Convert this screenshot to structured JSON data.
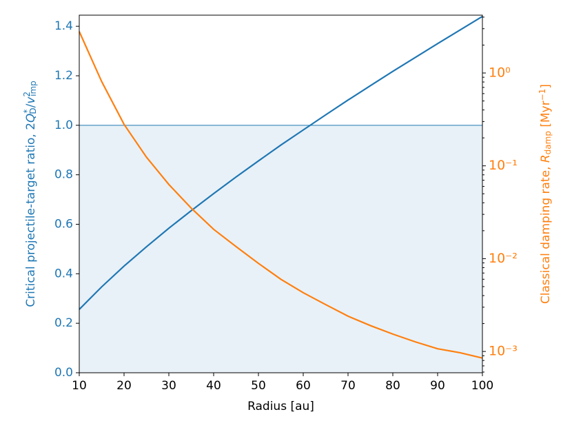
{
  "chart_data": {
    "type": "line",
    "xlabel": "Radius [au]",
    "ylabel_parts": [
      "Critical projectile-target ratio, 2",
      "Q",
      "*",
      "D",
      "/",
      "v",
      "2",
      "imp"
    ],
    "y2label_parts": [
      "Classical damping rate, ",
      "R",
      "damp",
      " [Myr",
      "−1",
      "]"
    ],
    "x": [
      10,
      15,
      20,
      25,
      30,
      35,
      40,
      45,
      50,
      55,
      60,
      65,
      70,
      75,
      80,
      85,
      90,
      95,
      100
    ],
    "series": [
      {
        "color": "#1f77b4",
        "values": [
          0.256,
          0.347,
          0.431,
          0.509,
          0.584,
          0.655,
          0.724,
          0.791,
          0.856,
          0.92,
          0.981,
          1.042,
          1.102,
          1.16,
          1.218,
          1.274,
          1.33,
          1.385,
          1.44
        ]
      },
      {
        "color": "#ff7f0e",
        "axis": "y2",
        "values": [
          2.8,
          0.81,
          0.28,
          0.124,
          0.063,
          0.035,
          0.0207,
          0.0135,
          0.0089,
          0.006,
          0.0043,
          0.0032,
          0.0024,
          0.0019,
          0.00154,
          0.00127,
          0.00107,
          0.00097,
          0.00085
        ]
      }
    ],
    "threshold": 1.0,
    "threshold_color": "#1f77b4",
    "xlim": [
      10,
      100
    ],
    "xticks": [
      10,
      20,
      30,
      40,
      50,
      60,
      70,
      80,
      90,
      100
    ],
    "ylim": [
      0,
      1.445
    ],
    "yticks": [
      {
        "value": 0,
        "label": "0.0"
      },
      0.2,
      0.4,
      0.6,
      0.8,
      {
        "value": 1,
        "label": "1.0"
      },
      1.2,
      1.4
    ],
    "y2lim": [
      0.00059,
      4.2
    ],
    "y2log": true,
    "y2ticks": [
      {
        "value": 0.001,
        "label": "10⁻³"
      },
      {
        "value": 0.01,
        "label": "10⁻²"
      },
      {
        "value": 0.1,
        "label": "10⁻¹"
      },
      {
        "value": 1,
        "label": "10⁰"
      }
    ],
    "y2minorticks": [
      0.0006,
      0.0007,
      0.0008,
      0.0009,
      0.002,
      0.003,
      0.004,
      0.005,
      0.006,
      0.007,
      0.008,
      0.009,
      0.02,
      0.03,
      0.04,
      0.05,
      0.06,
      0.07,
      0.08,
      0.09,
      0.2,
      0.3,
      0.4,
      0.5,
      0.6,
      0.7,
      0.8,
      0.9,
      2,
      3,
      4
    ]
  }
}
